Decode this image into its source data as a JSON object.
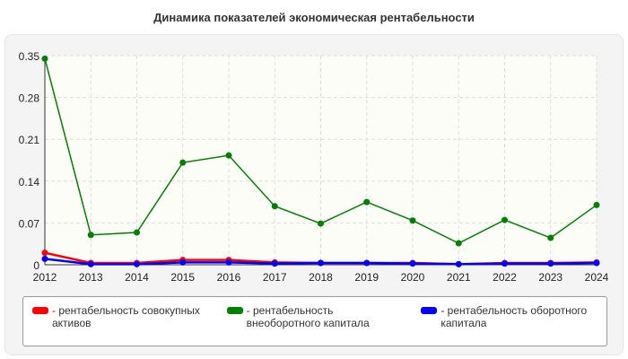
{
  "chart_data": {
    "type": "line",
    "title": "Динамика показателей экономическая рентабельности",
    "x": [
      "2012",
      "2013",
      "2014",
      "2015",
      "2016",
      "2017",
      "2018",
      "2019",
      "2020",
      "2021",
      "2022",
      "2023",
      "2024"
    ],
    "ylim": [
      0,
      0.35
    ],
    "yticks": [
      "0",
      "0.07",
      "0.14",
      "0.21",
      "0.28",
      "0.35"
    ],
    "grid": true,
    "legend_position": "bottom",
    "series": [
      {
        "name": "- рентабельность совокупных активов",
        "color": "#ff0000",
        "values": [
          0.02,
          0.003,
          0.003,
          0.008,
          0.008,
          0.004,
          0.003,
          0.003,
          0.003,
          0.001,
          0.003,
          0.003,
          0.004
        ]
      },
      {
        "name": "- рентабельность внеоборотного капитала",
        "color": "#008000",
        "values": [
          0.345,
          0.05,
          0.054,
          0.171,
          0.183,
          0.098,
          0.069,
          0.105,
          0.074,
          0.036,
          0.075,
          0.045,
          0.1
        ]
      },
      {
        "name": "- рентабельность оборотного капитала",
        "color": "#0000ff",
        "values": [
          0.01,
          0.001,
          0.001,
          0.004,
          0.004,
          0.002,
          0.003,
          0.003,
          0.002,
          0.001,
          0.002,
          0.002,
          0.003
        ]
      }
    ]
  }
}
